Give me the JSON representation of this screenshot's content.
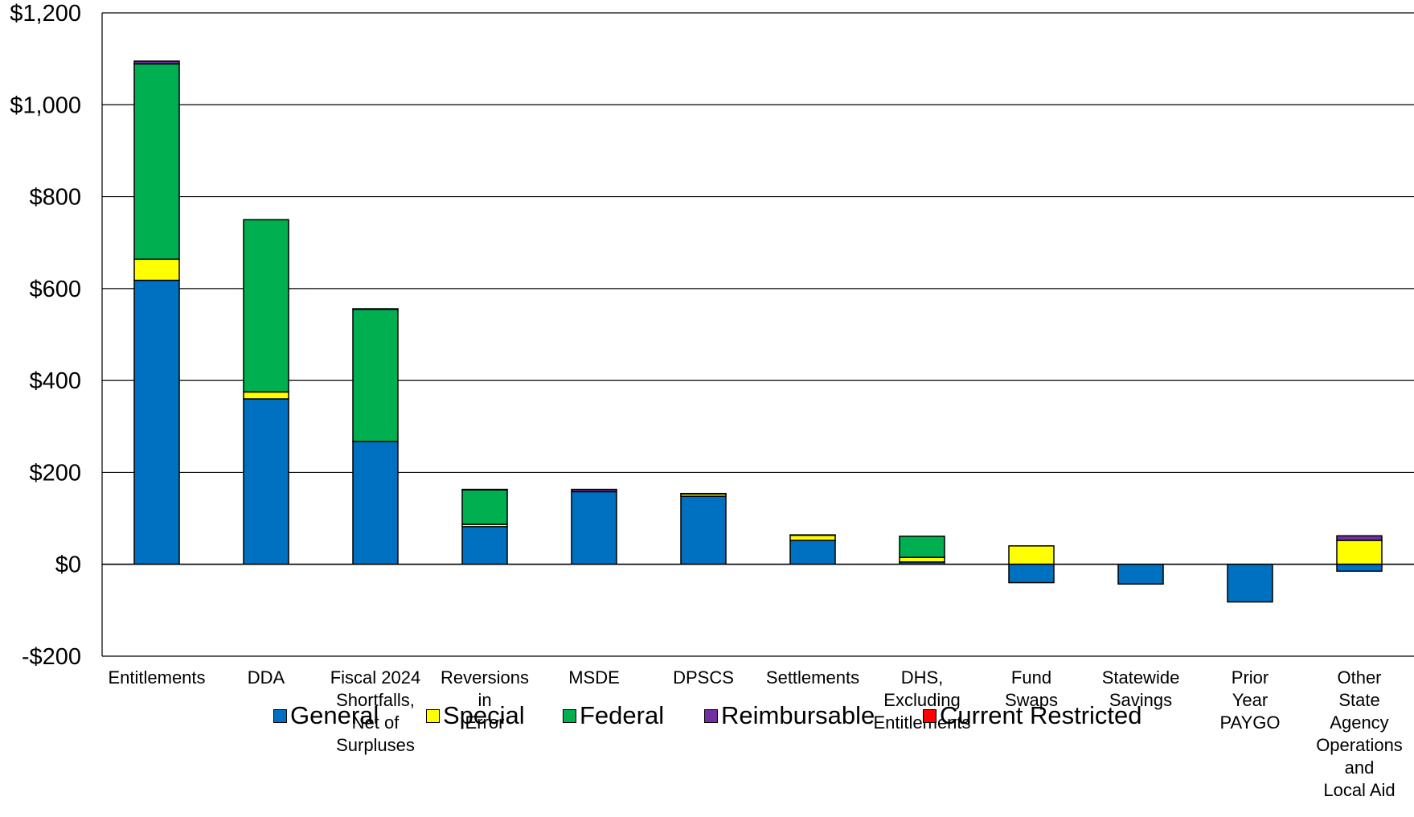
{
  "chart_data": {
    "type": "bar",
    "stacked": true,
    "title": "",
    "xlabel": "",
    "ylabel": "",
    "ylim": [
      -200,
      1200
    ],
    "yticks": [
      -200,
      0,
      200,
      400,
      600,
      800,
      1000,
      1200
    ],
    "ytick_labels": [
      "-$200",
      "$0",
      "$200",
      "$400",
      "$600",
      "$800",
      "$1,000",
      "$1,200"
    ],
    "grid": true,
    "legend_position": "bottom",
    "categories": [
      [
        "Entitlements"
      ],
      [
        "DDA"
      ],
      [
        "Fiscal 2024",
        "Shortfalls,",
        "Net of",
        "Surpluses"
      ],
      [
        "Reversions",
        "in",
        "Error"
      ],
      [
        "MSDE"
      ],
      [
        "DPSCS"
      ],
      [
        "Settlements"
      ],
      [
        "DHS,",
        "Excluding",
        "Entitlements"
      ],
      [
        "Fund",
        "Swaps"
      ],
      [
        "Statewide",
        "Savings"
      ],
      [
        "Prior",
        "Year",
        "PAYGO"
      ],
      [
        "Other",
        "State",
        "Agency",
        "Operations",
        "and",
        "Local Aid"
      ]
    ],
    "series": [
      {
        "name": "General",
        "color": "#0070C0",
        "values": [
          618,
          360,
          267,
          82,
          158,
          148,
          52,
          5,
          -40,
          -43,
          -82,
          -15
        ]
      },
      {
        "name": "Special",
        "color": "#FFFF00",
        "values": [
          46,
          15,
          0,
          5,
          0,
          5,
          11,
          10,
          40,
          0,
          0,
          52
        ]
      },
      {
        "name": "Federal",
        "color": "#00B050",
        "values": [
          425,
          375,
          288,
          75,
          0,
          0,
          0,
          46,
          0,
          0,
          0,
          0
        ]
      },
      {
        "name": "Reimbursable",
        "color": "#7030A0",
        "values": [
          6,
          0,
          1,
          1,
          5,
          1,
          1,
          0,
          0,
          0,
          0,
          10
        ]
      },
      {
        "name": "Current Restricted",
        "color": "#FF0000",
        "values": [
          0,
          0,
          0,
          0,
          0,
          0,
          0,
          0,
          0,
          0,
          0,
          0
        ]
      }
    ]
  }
}
